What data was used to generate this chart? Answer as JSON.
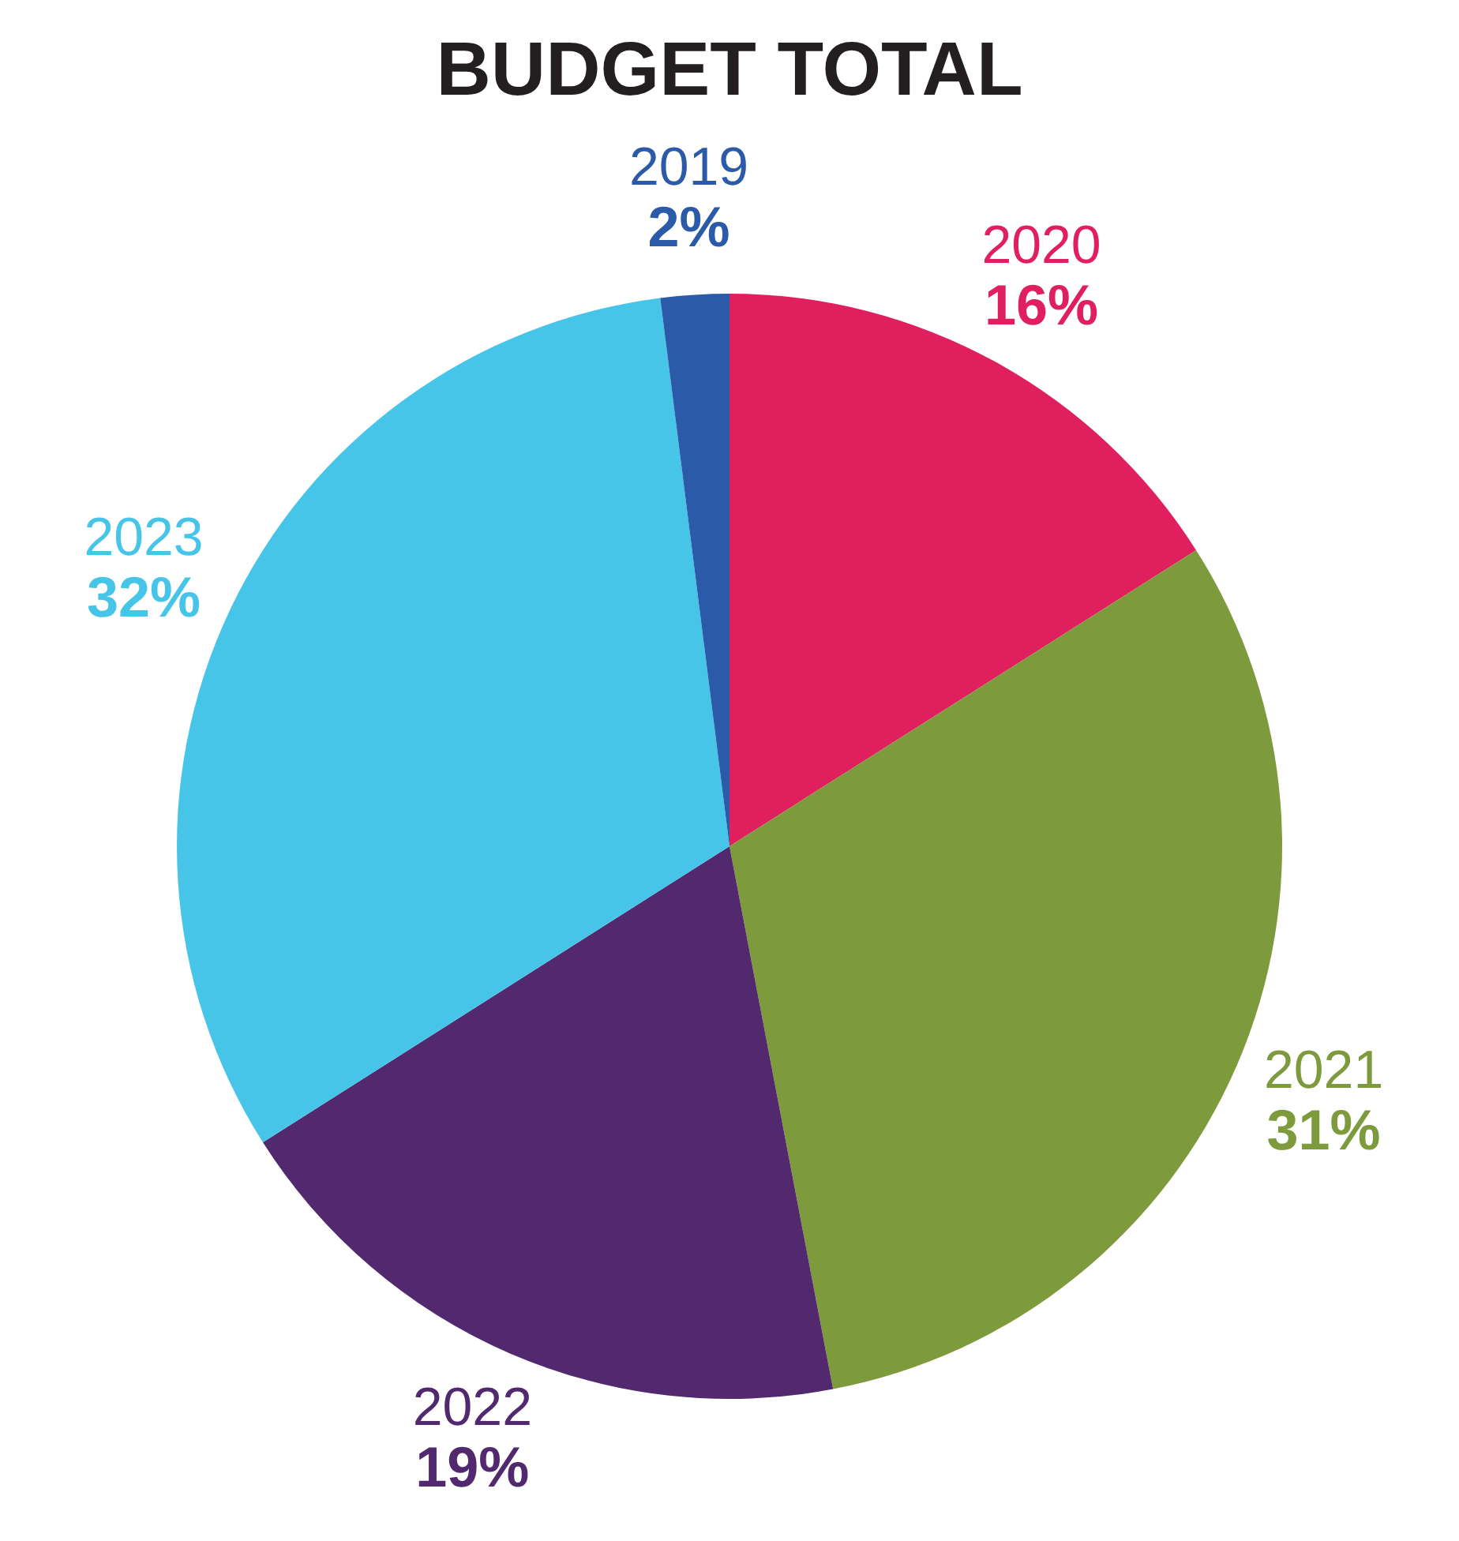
{
  "chart_data": {
    "type": "pie",
    "title": "BUDGET TOTAL",
    "categories": [
      "2020",
      "2021",
      "2022",
      "2023",
      "2019"
    ],
    "values": [
      16,
      31,
      19,
      32,
      2
    ],
    "value_labels": [
      "16%",
      "31%",
      "19%",
      "32%",
      "2%"
    ],
    "colors": [
      "#e0205e",
      "#7d9a3c",
      "#52296e",
      "#47c5e8",
      "#2b5aa8"
    ],
    "legend": false
  }
}
